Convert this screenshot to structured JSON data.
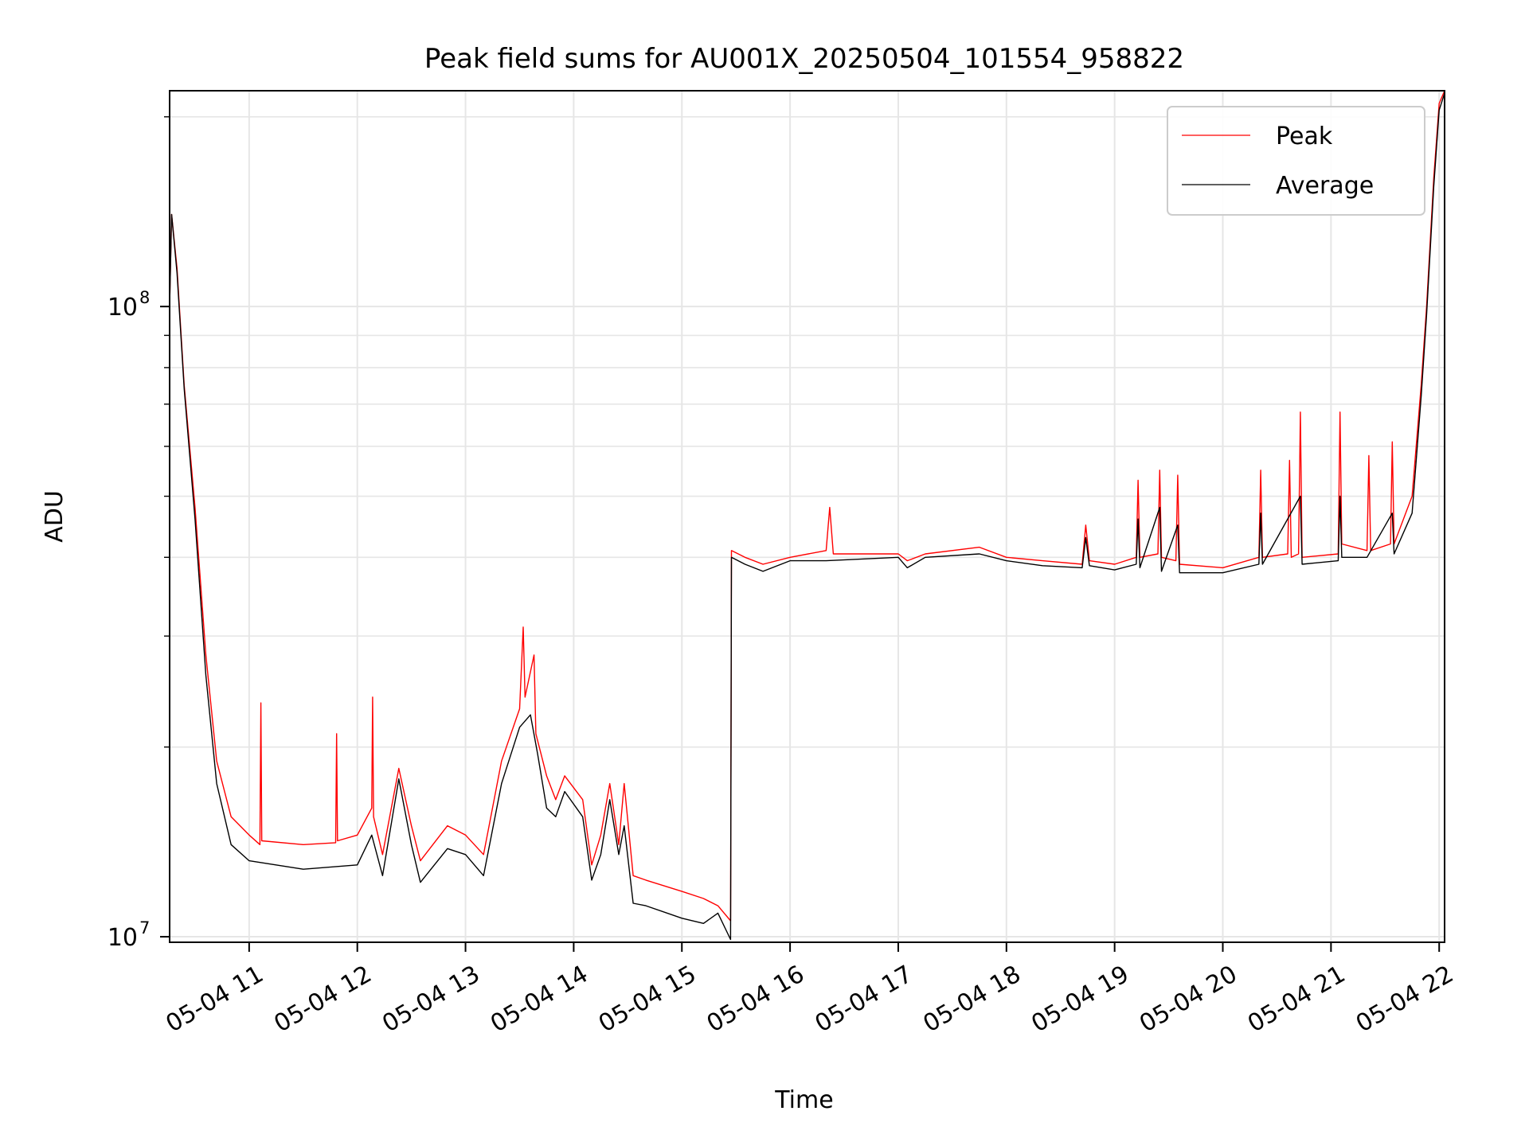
{
  "chart_data": {
    "type": "line",
    "title": "Peak field sums for AU001X_20250504_101554_958822",
    "xlabel": "Time",
    "ylabel": "ADU",
    "y_scale": "log",
    "ylim": [
      9800000,
      220000000
    ],
    "xlim": [
      "2025-05-04 10:15:54",
      "2025-05-04 22:03:00"
    ],
    "grid": true,
    "legend_position": "top-right",
    "x_ticks": [
      {
        "t": "2025-05-04 11:00",
        "label": "05-04 11"
      },
      {
        "t": "2025-05-04 12:00",
        "label": "05-04 12"
      },
      {
        "t": "2025-05-04 13:00",
        "label": "05-04 13"
      },
      {
        "t": "2025-05-04 14:00",
        "label": "05-04 14"
      },
      {
        "t": "2025-05-04 15:00",
        "label": "05-04 15"
      },
      {
        "t": "2025-05-04 16:00",
        "label": "05-04 16"
      },
      {
        "t": "2025-05-04 17:00",
        "label": "05-04 17"
      },
      {
        "t": "2025-05-04 18:00",
        "label": "05-04 18"
      },
      {
        "t": "2025-05-04 19:00",
        "label": "05-04 19"
      },
      {
        "t": "2025-05-04 20:00",
        "label": "05-04 20"
      },
      {
        "t": "2025-05-04 21:00",
        "label": "05-04 21"
      },
      {
        "t": "2025-05-04 22:00",
        "label": "05-04 22"
      }
    ],
    "y_ticks": [
      {
        "value": 10000000,
        "base": "10",
        "exp": "7"
      },
      {
        "value": 100000000,
        "base": "10",
        "exp": "8"
      }
    ],
    "y_minor_ticks": [
      20000000,
      30000000,
      40000000,
      50000000,
      60000000,
      70000000,
      80000000,
      90000000,
      200000000
    ],
    "series": [
      {
        "name": "Peak",
        "color": "#ff0000",
        "points": [
          [
            "2025-05-04 10:15:54",
            100000000
          ],
          [
            "2025-05-04 10:17:00",
            140000000
          ],
          [
            "2025-05-04 10:20:00",
            115000000
          ],
          [
            "2025-05-04 10:24:00",
            75000000
          ],
          [
            "2025-05-04 10:30:00",
            48000000
          ],
          [
            "2025-05-04 10:36:00",
            28000000
          ],
          [
            "2025-05-04 10:42:00",
            19000000
          ],
          [
            "2025-05-04 10:50:00",
            15500000
          ],
          [
            "2025-05-04 11:00:00",
            14500000
          ],
          [
            "2025-05-04 11:06:00",
            14000000
          ],
          [
            "2025-05-04 11:06:30",
            23500000
          ],
          [
            "2025-05-04 11:07:00",
            14200000
          ],
          [
            "2025-05-04 11:30:00",
            14000000
          ],
          [
            "2025-05-04 11:48:00",
            14100000
          ],
          [
            "2025-05-04 11:48:30",
            21000000
          ],
          [
            "2025-05-04 11:49:00",
            14200000
          ],
          [
            "2025-05-04 12:00:00",
            14500000
          ],
          [
            "2025-05-04 12:08:00",
            16000000
          ],
          [
            "2025-05-04 12:08:30",
            24000000
          ],
          [
            "2025-05-04 12:09:00",
            15500000
          ],
          [
            "2025-05-04 12:14:00",
            13500000
          ],
          [
            "2025-05-04 12:23:00",
            18500000
          ],
          [
            "2025-05-04 12:30:00",
            15000000
          ],
          [
            "2025-05-04 12:35:00",
            13200000
          ],
          [
            "2025-05-04 12:50:00",
            15000000
          ],
          [
            "2025-05-04 13:00:00",
            14500000
          ],
          [
            "2025-05-04 13:10:00",
            13500000
          ],
          [
            "2025-05-04 13:20:00",
            19000000
          ],
          [
            "2025-05-04 13:30:00",
            23000000
          ],
          [
            "2025-05-04 13:32:00",
            31000000
          ],
          [
            "2025-05-04 13:33:00",
            24000000
          ],
          [
            "2025-05-04 13:38:00",
            28000000
          ],
          [
            "2025-05-04 13:39:00",
            21000000
          ],
          [
            "2025-05-04 13:45:00",
            18000000
          ],
          [
            "2025-05-04 13:50:00",
            16500000
          ],
          [
            "2025-05-04 13:55:00",
            18000000
          ],
          [
            "2025-05-04 14:05:00",
            16500000
          ],
          [
            "2025-05-04 14:10:00",
            13000000
          ],
          [
            "2025-05-04 14:15:00",
            14500000
          ],
          [
            "2025-05-04 14:20:00",
            17500000
          ],
          [
            "2025-05-04 14:25:00",
            14000000
          ],
          [
            "2025-05-04 14:28:00",
            17500000
          ],
          [
            "2025-05-04 14:33:00",
            12500000
          ],
          [
            "2025-05-04 14:40:00",
            12300000
          ],
          [
            "2025-05-04 15:00:00",
            11800000
          ],
          [
            "2025-05-04 15:12:00",
            11500000
          ],
          [
            "2025-05-04 15:20:00",
            11200000
          ],
          [
            "2025-05-04 15:27:00",
            10600000
          ],
          [
            "2025-05-04 15:27:30",
            41000000
          ],
          [
            "2025-05-04 15:35:00",
            40000000
          ],
          [
            "2025-05-04 15:45:00",
            39000000
          ],
          [
            "2025-05-04 16:00:00",
            40000000
          ],
          [
            "2025-05-04 16:20:00",
            41000000
          ],
          [
            "2025-05-04 16:22:00",
            48000000
          ],
          [
            "2025-05-04 16:24:00",
            40500000
          ],
          [
            "2025-05-04 17:00:00",
            40500000
          ],
          [
            "2025-05-04 17:05:00",
            39500000
          ],
          [
            "2025-05-04 17:15:00",
            40500000
          ],
          [
            "2025-05-04 17:45:00",
            41500000
          ],
          [
            "2025-05-04 18:00:00",
            40000000
          ],
          [
            "2025-05-04 18:20:00",
            39500000
          ],
          [
            "2025-05-04 18:42:00",
            39000000
          ],
          [
            "2025-05-04 18:44:00",
            45000000
          ],
          [
            "2025-05-04 18:46:00",
            39500000
          ],
          [
            "2025-05-04 19:00:00",
            39000000
          ],
          [
            "2025-05-04 19:12:00",
            40000000
          ],
          [
            "2025-05-04 19:13:00",
            53000000
          ],
          [
            "2025-05-04 19:14:00",
            40000000
          ],
          [
            "2025-05-04 19:24:00",
            40500000
          ],
          [
            "2025-05-04 19:25:00",
            55000000
          ],
          [
            "2025-05-04 19:26:00",
            40000000
          ],
          [
            "2025-05-04 19:34:00",
            39500000
          ],
          [
            "2025-05-04 19:35:00",
            54000000
          ],
          [
            "2025-05-04 19:36:00",
            39000000
          ],
          [
            "2025-05-04 20:00:00",
            38500000
          ],
          [
            "2025-05-04 20:20:00",
            40000000
          ],
          [
            "2025-05-04 20:21:00",
            55000000
          ],
          [
            "2025-05-04 20:22:00",
            40000000
          ],
          [
            "2025-05-04 20:36:00",
            40500000
          ],
          [
            "2025-05-04 20:37:00",
            57000000
          ],
          [
            "2025-05-04 20:38:00",
            40000000
          ],
          [
            "2025-05-04 20:42:00",
            40500000
          ],
          [
            "2025-05-04 20:43:00",
            68000000
          ],
          [
            "2025-05-04 20:44:00",
            40000000
          ],
          [
            "2025-05-04 21:04:00",
            40500000
          ],
          [
            "2025-05-04 21:05:00",
            68000000
          ],
          [
            "2025-05-04 21:06:00",
            42000000
          ],
          [
            "2025-05-04 21:20:00",
            41000000
          ],
          [
            "2025-05-04 21:21:00",
            58000000
          ],
          [
            "2025-05-04 21:22:00",
            41000000
          ],
          [
            "2025-05-04 21:33:00",
            42000000
          ],
          [
            "2025-05-04 21:34:00",
            61000000
          ],
          [
            "2025-05-04 21:35:00",
            42000000
          ],
          [
            "2025-05-04 21:45:00",
            50000000
          ],
          [
            "2025-05-04 21:50:00",
            75000000
          ],
          [
            "2025-05-04 21:53:00",
            100000000
          ],
          [
            "2025-05-04 21:57:00",
            160000000
          ],
          [
            "2025-05-04 22:00:00",
            210000000
          ],
          [
            "2025-05-04 22:03:00",
            220000000
          ]
        ]
      },
      {
        "name": "Average",
        "color": "#000000",
        "points": [
          [
            "2025-05-04 10:15:54",
            100000000
          ],
          [
            "2025-05-04 10:17:00",
            140000000
          ],
          [
            "2025-05-04 10:20:00",
            113000000
          ],
          [
            "2025-05-04 10:24:00",
            74000000
          ],
          [
            "2025-05-04 10:30:00",
            46000000
          ],
          [
            "2025-05-04 10:36:00",
            26000000
          ],
          [
            "2025-05-04 10:42:00",
            17500000
          ],
          [
            "2025-05-04 10:50:00",
            14000000
          ],
          [
            "2025-05-04 11:00:00",
            13200000
          ],
          [
            "2025-05-04 11:30:00",
            12800000
          ],
          [
            "2025-05-04 12:00:00",
            13000000
          ],
          [
            "2025-05-04 12:08:00",
            14500000
          ],
          [
            "2025-05-04 12:14:00",
            12500000
          ],
          [
            "2025-05-04 12:23:00",
            17800000
          ],
          [
            "2025-05-04 12:30:00",
            14000000
          ],
          [
            "2025-05-04 12:35:00",
            12200000
          ],
          [
            "2025-05-04 12:50:00",
            13800000
          ],
          [
            "2025-05-04 13:00:00",
            13500000
          ],
          [
            "2025-05-04 13:10:00",
            12500000
          ],
          [
            "2025-05-04 13:20:00",
            17500000
          ],
          [
            "2025-05-04 13:30:00",
            21500000
          ],
          [
            "2025-05-04 13:36:00",
            22500000
          ],
          [
            "2025-05-04 13:40:00",
            19500000
          ],
          [
            "2025-05-04 13:45:00",
            16000000
          ],
          [
            "2025-05-04 13:50:00",
            15500000
          ],
          [
            "2025-05-04 13:55:00",
            17000000
          ],
          [
            "2025-05-04 14:05:00",
            15500000
          ],
          [
            "2025-05-04 14:10:00",
            12300000
          ],
          [
            "2025-05-04 14:15:00",
            13500000
          ],
          [
            "2025-05-04 14:20:00",
            16500000
          ],
          [
            "2025-05-04 14:25:00",
            13500000
          ],
          [
            "2025-05-04 14:28:00",
            15000000
          ],
          [
            "2025-05-04 14:33:00",
            11300000
          ],
          [
            "2025-05-04 14:40:00",
            11200000
          ],
          [
            "2025-05-04 15:00:00",
            10700000
          ],
          [
            "2025-05-04 15:12:00",
            10500000
          ],
          [
            "2025-05-04 15:20:00",
            10900000
          ],
          [
            "2025-05-04 15:27:00",
            9900000
          ],
          [
            "2025-05-04 15:27:30",
            40000000
          ],
          [
            "2025-05-04 15:35:00",
            39000000
          ],
          [
            "2025-05-04 15:45:00",
            38000000
          ],
          [
            "2025-05-04 16:00:00",
            39500000
          ],
          [
            "2025-05-04 16:20:00",
            39500000
          ],
          [
            "2025-05-04 17:00:00",
            40000000
          ],
          [
            "2025-05-04 17:05:00",
            38500000
          ],
          [
            "2025-05-04 17:15:00",
            40000000
          ],
          [
            "2025-05-04 17:45:00",
            40500000
          ],
          [
            "2025-05-04 18:00:00",
            39500000
          ],
          [
            "2025-05-04 18:20:00",
            38800000
          ],
          [
            "2025-05-04 18:42:00",
            38500000
          ],
          [
            "2025-05-04 18:44:00",
            43000000
          ],
          [
            "2025-05-04 18:46:00",
            38800000
          ],
          [
            "2025-05-04 19:00:00",
            38200000
          ],
          [
            "2025-05-04 19:12:00",
            39000000
          ],
          [
            "2025-05-04 19:13:00",
            46000000
          ],
          [
            "2025-05-04 19:14:00",
            38500000
          ],
          [
            "2025-05-04 19:25:00",
            48000000
          ],
          [
            "2025-05-04 19:26:00",
            38000000
          ],
          [
            "2025-05-04 19:35:00",
            45000000
          ],
          [
            "2025-05-04 19:36:00",
            37800000
          ],
          [
            "2025-05-04 20:00:00",
            37800000
          ],
          [
            "2025-05-04 20:20:00",
            39000000
          ],
          [
            "2025-05-04 20:21:00",
            47000000
          ],
          [
            "2025-05-04 20:22:00",
            39000000
          ],
          [
            "2025-05-04 20:43:00",
            50000000
          ],
          [
            "2025-05-04 20:44:00",
            39000000
          ],
          [
            "2025-05-04 21:04:00",
            39500000
          ],
          [
            "2025-05-04 21:05:00",
            50000000
          ],
          [
            "2025-05-04 21:06:00",
            40000000
          ],
          [
            "2025-05-04 21:20:00",
            40000000
          ],
          [
            "2025-05-04 21:34:00",
            47000000
          ],
          [
            "2025-05-04 21:35:00",
            40500000
          ],
          [
            "2025-05-04 21:45:00",
            47000000
          ],
          [
            "2025-05-04 21:50:00",
            72000000
          ],
          [
            "2025-05-04 21:53:00",
            97000000
          ],
          [
            "2025-05-04 21:57:00",
            155000000
          ],
          [
            "2025-05-04 22:00:00",
            205000000
          ],
          [
            "2025-05-04 22:03:00",
            218000000
          ]
        ]
      }
    ]
  }
}
